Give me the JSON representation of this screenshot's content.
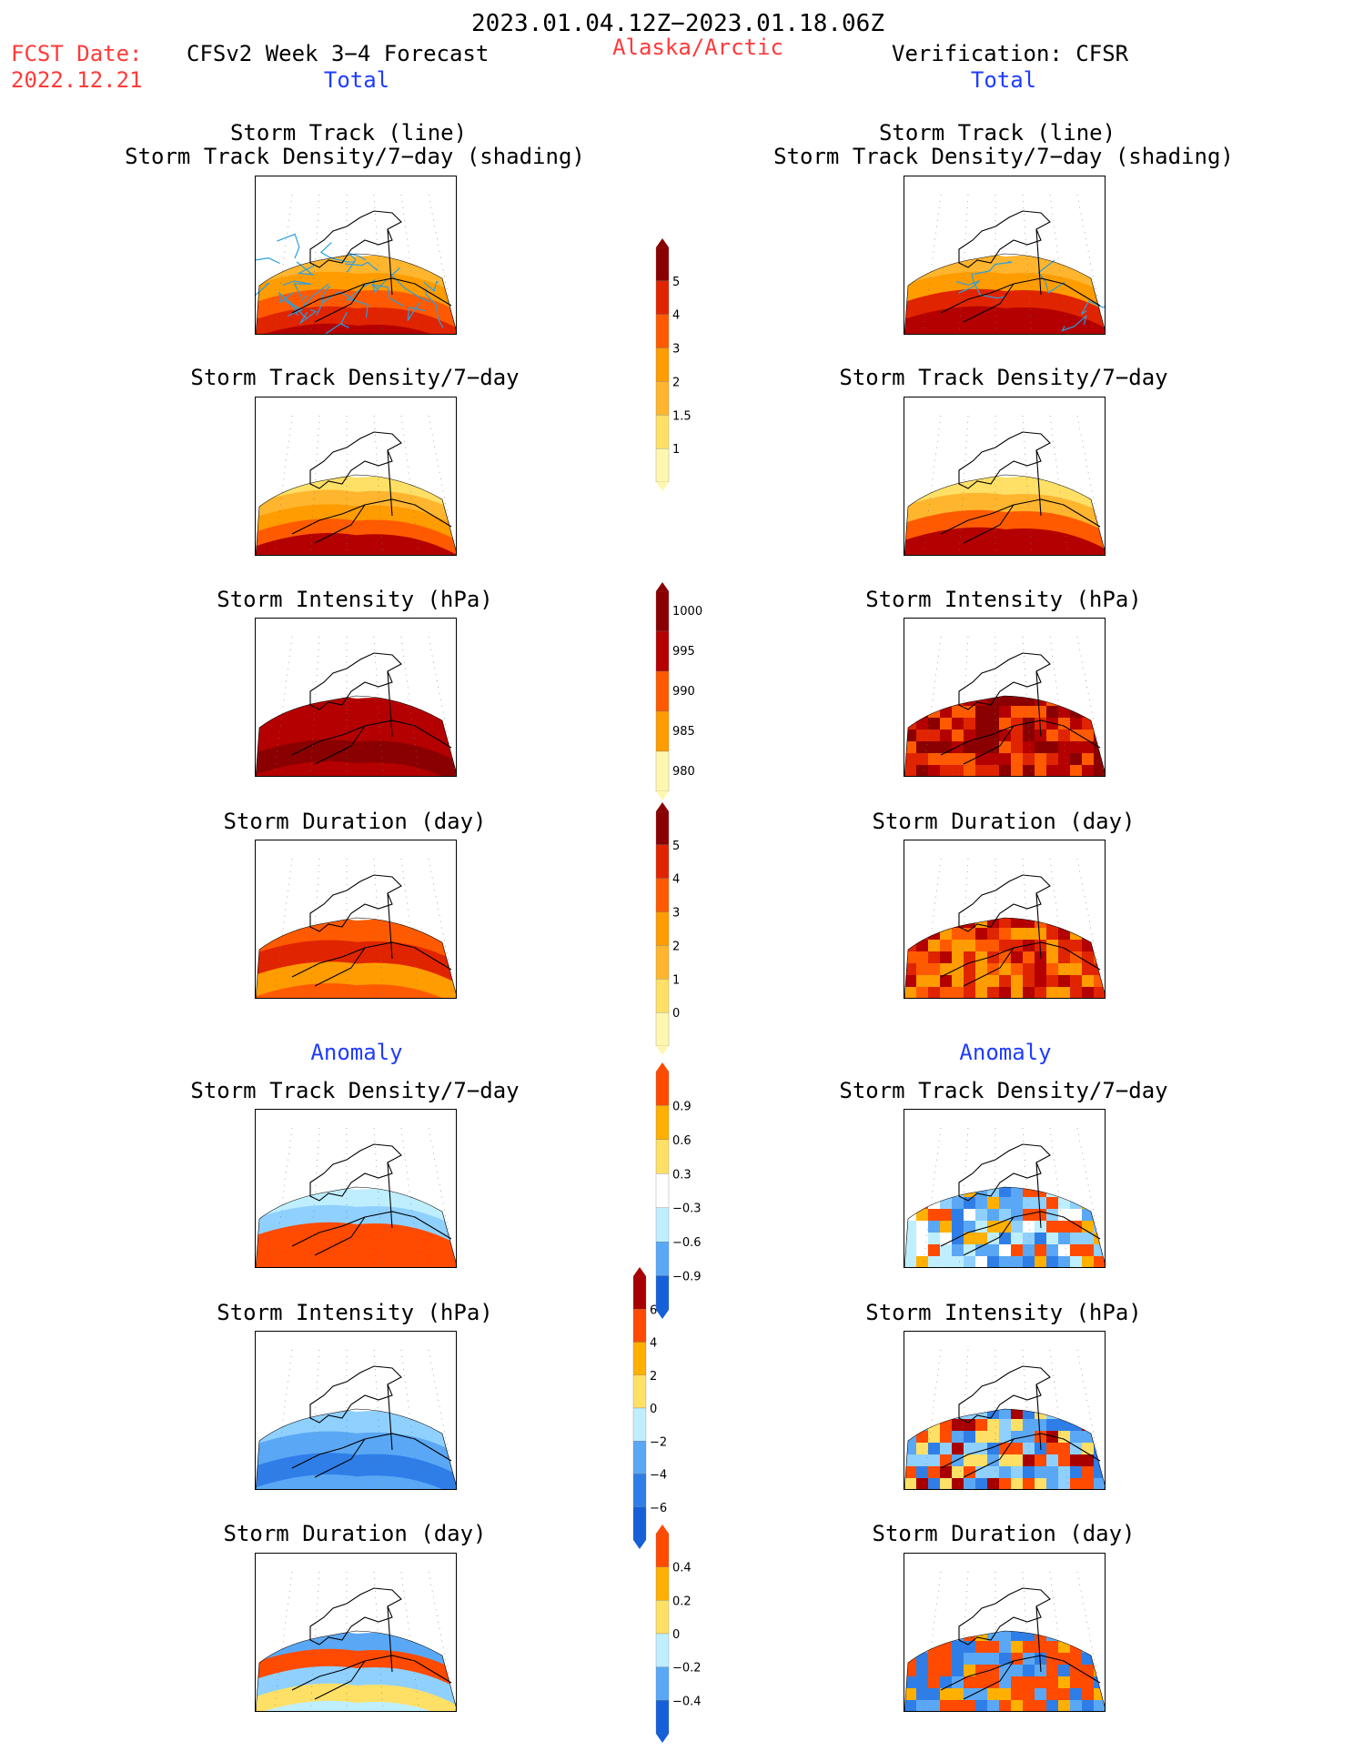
{
  "header": {
    "date_range": "2023.01.04.12Z−2023.01.18.06Z",
    "region": "Alaska/Arctic",
    "fcst_label": "FCST Date:",
    "fcst_date": "2022.12.21",
    "forecast_title": "CFSv2 Week 3−4 Forecast",
    "verification_title": "Verification: CFSR",
    "total_left": "Total",
    "total_right": "Total",
    "anomaly_left": "Anomaly",
    "anomaly_right": "Anomaly"
  },
  "panels": {
    "track_line": "Storm Track (line)",
    "track_density_shading": "Storm Track Density/7−day (shading)",
    "track_density": "Storm Track Density/7−day",
    "intensity": "Storm Intensity (hPa)",
    "duration": "Storm Duration (day)"
  },
  "colorbars": {
    "density_total": [
      "1",
      "1.5",
      "2",
      "3",
      "4",
      "5"
    ],
    "intensity_total": [
      "980",
      "985",
      "990",
      "995",
      "1000"
    ],
    "duration_total": [
      "0",
      "1",
      "2",
      "3",
      "4",
      "5"
    ],
    "density_anomaly": [
      "−0.9",
      "−0.6",
      "−0.3",
      "0.3",
      "0.6",
      "0.9"
    ],
    "intensity_anomaly": [
      "−6",
      "−4",
      "−2",
      "0",
      "2",
      "4",
      "6"
    ],
    "duration_anomaly": [
      "−0.4",
      "−0.2",
      "0",
      "0.2",
      "0.4"
    ]
  },
  "colors": {
    "warm": [
      "#fff7b0",
      "#ffe066",
      "#ffb52e",
      "#ff9c00",
      "#ff5a00",
      "#e02400",
      "#b40000",
      "#8a0000"
    ],
    "anomaly_pos": [
      "#ffe066",
      "#ffb000",
      "#ff4a00",
      "#a80000"
    ],
    "anomaly_neg": [
      "#bfefff",
      "#8fd0ff",
      "#5aa8f5",
      "#2f7ee8",
      "#1560d8"
    ],
    "track_line": "#2a9fe0",
    "forecast_label": "#ff3a3a",
    "section_label": "#1f3cff"
  }
}
